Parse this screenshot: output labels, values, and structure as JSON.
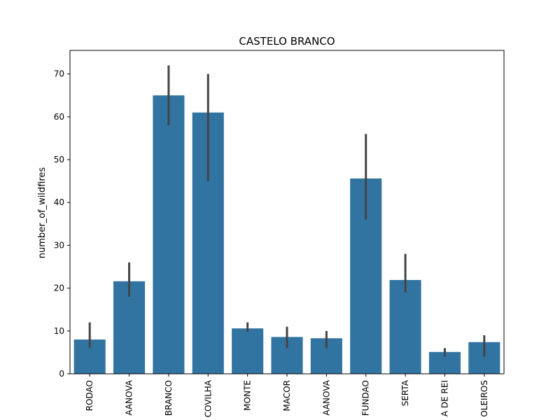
{
  "chart_data": {
    "type": "bar",
    "title": "CASTELO BRANCO",
    "xlabel": "",
    "ylabel": "number_of_wildfires",
    "ylim": [
      0,
      75.5
    ],
    "yticks": [
      0,
      10,
      20,
      30,
      40,
      50,
      60,
      70
    ],
    "categories": [
      "RODAO",
      "AANOVA",
      "BRANCO",
      "COVILHA",
      "MONTE",
      "MACOR",
      "AANOVA",
      "FUNDAO",
      "SERTA",
      "A DE REI",
      "OLEIROS"
    ],
    "values": [
      8.0,
      21.6,
      65.0,
      61.0,
      10.6,
      8.6,
      8.3,
      45.6,
      21.9,
      5.1,
      7.4
    ],
    "error_low": [
      6.0,
      18.0,
      58.0,
      45.0,
      9.8,
      6.0,
      6.0,
      36.0,
      19.0,
      4.0,
      4.0
    ],
    "error_high": [
      12.0,
      26.0,
      72.0,
      70.0,
      12.0,
      11.0,
      10.0,
      56.0,
      28.0,
      6.0,
      9.0
    ],
    "bar_color": "#3274a1",
    "error_color": "#444444",
    "grid": false,
    "legend": "none"
  }
}
